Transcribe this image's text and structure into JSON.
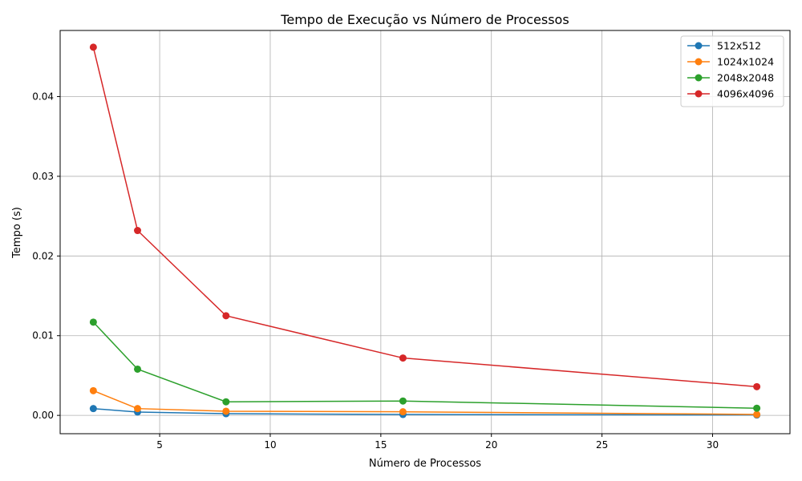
{
  "chart_data": {
    "type": "line",
    "title": "Tempo de Execução vs Número de Processos",
    "xlabel": "Número de Processos",
    "ylabel": "Tempo (s)",
    "xlim": [
      0.5,
      33.5
    ],
    "ylim": [
      -0.0023,
      0.0483
    ],
    "xticks": [
      5,
      10,
      15,
      20,
      25,
      30
    ],
    "xtick_labels": [
      "5",
      "10",
      "15",
      "20",
      "25",
      "30"
    ],
    "yticks": [
      0.0,
      0.01,
      0.02,
      0.03,
      0.04
    ],
    "ytick_labels": [
      "0.00",
      "0.01",
      "0.02",
      "0.03",
      "0.04"
    ],
    "grid": true,
    "legend_position": "top-right",
    "x": [
      2,
      4,
      8,
      16,
      32
    ],
    "series": [
      {
        "name": "512x512",
        "color": "#1f77b4",
        "values": [
          0.00085,
          0.00042,
          0.00021,
          0.00011,
          5e-05
        ]
      },
      {
        "name": "1024x1024",
        "color": "#ff7f0e",
        "values": [
          0.0031,
          0.00085,
          0.00052,
          0.00045,
          0.00012
        ]
      },
      {
        "name": "2048x2048",
        "color": "#2ca02c",
        "values": [
          0.0117,
          0.0058,
          0.0017,
          0.0018,
          0.0009
        ]
      },
      {
        "name": "4096x4096",
        "color": "#d62728",
        "values": [
          0.0462,
          0.0232,
          0.0125,
          0.0072,
          0.0036
        ]
      }
    ]
  }
}
